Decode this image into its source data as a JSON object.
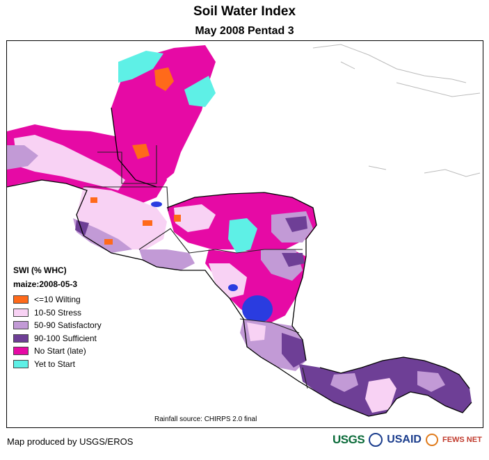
{
  "title": "Soil Water Index",
  "subtitle": "May 2008 Pentad 3",
  "legend": {
    "title": "SWI (% WHC)",
    "subtitle": "maize:2008-05-3",
    "items": [
      {
        "label": "<=10 Wilting",
        "color": "#ff6a1a"
      },
      {
        "label": "10-50 Stress",
        "color": "#f8d2f4"
      },
      {
        "label": "50-90 Satisfactory",
        "color": "#c29ad6"
      },
      {
        "label": "90-100 Sufficient",
        "color": "#6e3f96"
      },
      {
        "label": "No Start (late)",
        "color": "#e60aa5"
      },
      {
        "label": "Yet to Start",
        "color": "#5ef0e6"
      }
    ]
  },
  "water_color": "#2a3ce0",
  "rainfall_source": "Rainfall source: CHIRPS 2.0 final",
  "credit": "Map produced by USGS/EROS",
  "logos": {
    "usgs": "USGS",
    "usaid": "USAID",
    "fews": "FEWS NET"
  }
}
